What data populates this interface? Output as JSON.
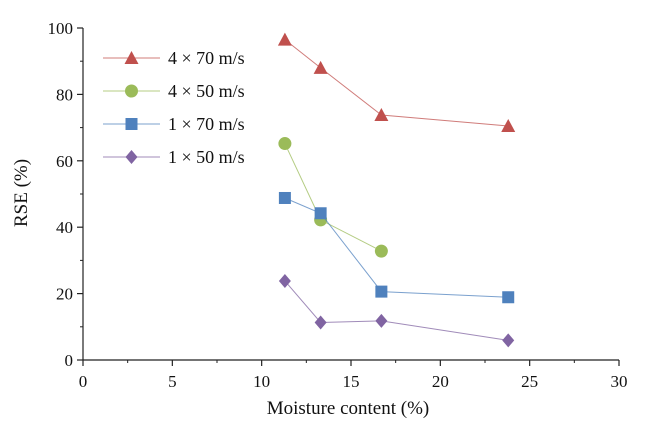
{
  "chart_data": {
    "type": "line",
    "title": "",
    "xlabel": "Moisture content (%)",
    "ylabel": "RSE (%)",
    "xlim": [
      0,
      30
    ],
    "ylim": [
      0,
      100
    ],
    "xticks": [
      0,
      5,
      10,
      15,
      20,
      25,
      30
    ],
    "yticks": [
      0,
      20,
      40,
      60,
      80,
      100
    ],
    "grid": false,
    "legend_position": "top-left",
    "series": [
      {
        "name": "4 × 70 m/s",
        "color": "#c0504d",
        "marker": "triangle",
        "x": [
          11.3,
          13.3,
          16.7,
          23.8
        ],
        "y": [
          96.5,
          88.0,
          73.8,
          70.5
        ]
      },
      {
        "name": "4 × 50 m/s",
        "color": "#9bbb59",
        "marker": "circle",
        "x": [
          11.3,
          13.3,
          16.7
        ],
        "y": [
          65.2,
          42.2,
          32.8
        ]
      },
      {
        "name": "1 × 70 m/s",
        "color": "#4f81bd",
        "marker": "square",
        "x": [
          11.3,
          13.3,
          16.7,
          23.8
        ],
        "y": [
          48.8,
          44.2,
          20.6,
          18.9
        ]
      },
      {
        "name": "1 × 50 m/s",
        "color": "#8064a2",
        "marker": "diamond",
        "x": [
          11.3,
          13.3,
          16.7,
          23.8
        ],
        "y": [
          23.8,
          11.3,
          11.8,
          5.9
        ]
      }
    ]
  }
}
